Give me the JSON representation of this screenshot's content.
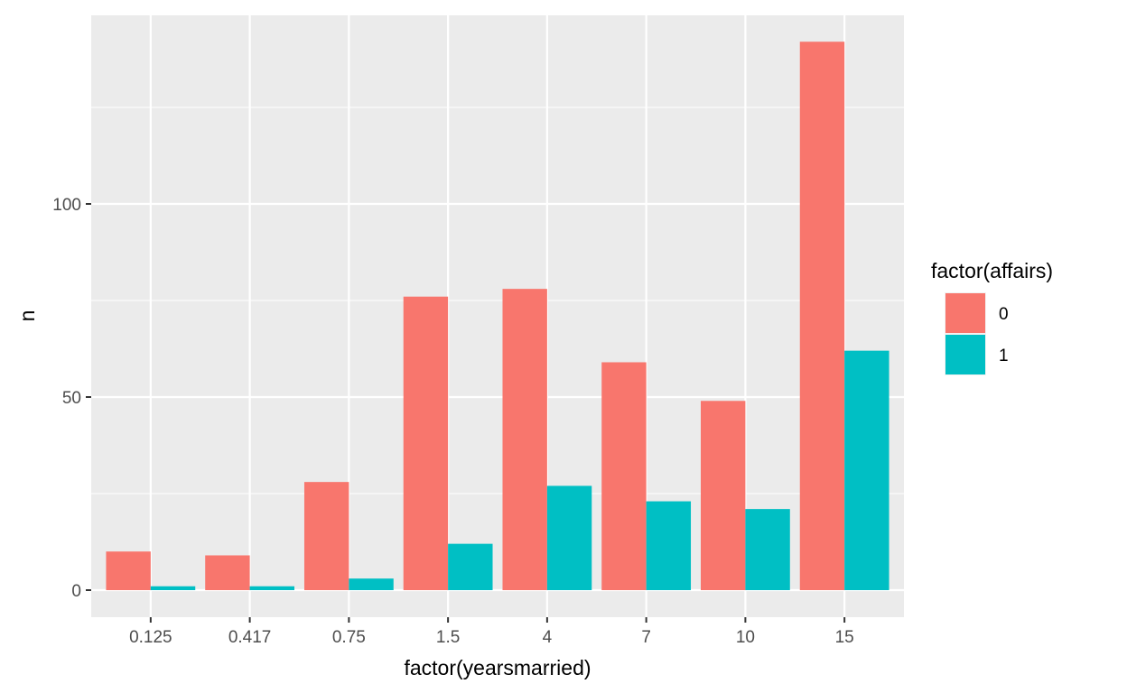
{
  "chart_data": {
    "type": "bar",
    "xlabel": "factor(yearsmarried)",
    "ylabel": "n",
    "categories": [
      "0.125",
      "0.417",
      "0.75",
      "1.5",
      "4",
      "7",
      "10",
      "15"
    ],
    "series": [
      {
        "name": "0",
        "color": "#F8766D",
        "values": [
          10,
          9,
          28,
          76,
          78,
          59,
          49,
          142
        ]
      },
      {
        "name": "1",
        "color": "#00BFC4",
        "values": [
          1,
          1,
          3,
          12,
          27,
          23,
          21,
          62
        ]
      }
    ],
    "y_ticks": [
      0,
      50,
      100
    ],
    "y_tick_labels": [
      "0",
      "50",
      "100"
    ],
    "ylim": [
      -6.5,
      149.5
    ],
    "grid": true,
    "legend": {
      "title": "factor(affairs)",
      "position": "right"
    }
  }
}
